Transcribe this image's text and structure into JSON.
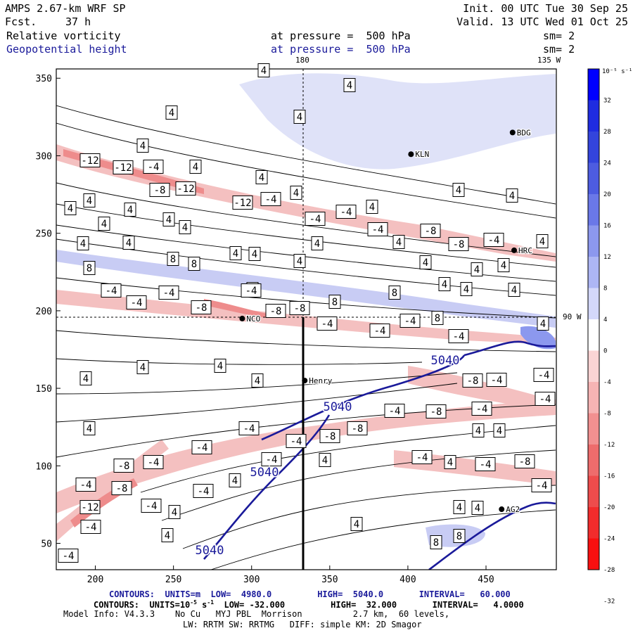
{
  "header": {
    "model": "AMPS 2.67-km WRF SP",
    "fcst_label": "Fcst.",
    "fcst_value": "37 h",
    "init": "Init. 00 UTC Tue 30 Sep 25",
    "valid": "Valid. 13 UTC Wed 01 Oct 25",
    "field1": "Relative vorticity",
    "field1_pressure": "at pressure =  500 hPa",
    "field1_sm": "sm= 2",
    "field2": "Geopotential height",
    "field2_pressure": "at pressure =  500 hPa",
    "field2_sm": "sm= 2"
  },
  "colors": {
    "height_contours": "#1a1a9a",
    "negative_fill": "#f4c4c4",
    "positive_fill": "#c8ccf4"
  },
  "chart_data": {
    "type": "heatmap",
    "x_ticks": [
      "200",
      "250",
      "300",
      "350",
      "400",
      "450"
    ],
    "y_ticks": [
      "350",
      "300",
      "250",
      "200",
      "150",
      "100",
      "50"
    ],
    "xlim": [
      175,
      495
    ],
    "ylim": [
      33,
      356
    ],
    "grid": false,
    "meridian_labels": {
      "top_left": "180",
      "top_right": "135 W",
      "right": "90 W"
    },
    "stations": [
      {
        "name": "NCO",
        "x": 294,
        "y": 195
      },
      {
        "name": "Henry",
        "x": 334,
        "y": 155
      },
      {
        "name": "KLN",
        "x": 402,
        "y": 301
      },
      {
        "name": "BDG",
        "x": 467,
        "y": 315
      },
      {
        "name": "HRC",
        "x": 468,
        "y": 239
      },
      {
        "name": "AG2",
        "x": 460,
        "y": 72
      }
    ],
    "height_label": "5040",
    "height_contour_value": 5040,
    "vorticity_labels": [
      "-12",
      "-8",
      "-4",
      "4",
      "8"
    ],
    "colorbar": {
      "unit_label": "10⁻⁵ s⁻¹",
      "ticks": [
        "32",
        "28",
        "24",
        "20",
        "16",
        "12",
        "8",
        "4",
        "0",
        "-4",
        "-8",
        "-12",
        "-16",
        "-20",
        "-24",
        "-28",
        "-32"
      ],
      "colors": [
        "#0000ff",
        "#1f2ce0",
        "#3344dc",
        "#4d5ce0",
        "#6a78e8",
        "#8c98ee",
        "#adb6f4",
        "#d4d8fa",
        "#ffffff",
        "#fad4d4",
        "#f6b4b4",
        "#f29090",
        "#ee6c6c",
        "#ee4c4c",
        "#f22c2c",
        "#f81010"
      ]
    }
  },
  "footer": {
    "contours1": "CONTOURS:  UNITS=m  LOW=  4980.0         HIGH=  5040.0       INTERVAL=   60.000",
    "contours2_pre": "CONTOURS:  UNITS=10",
    "contours2_exp1": "-5",
    "contours2_mid": " s",
    "contours2_exp2": "-1",
    "contours2_post": "  LOW= -32.000         HIGH=  32.000       INTERVAL=   4.0000",
    "model_info": "Model Info: V4.3.3    No Cu   MYJ PBL  Morrison          2.7 km,  60 levels,",
    "model_info2": "LW: RRTM SW: RRTMG   DIFF: simple KM: 2D Smagor"
  }
}
